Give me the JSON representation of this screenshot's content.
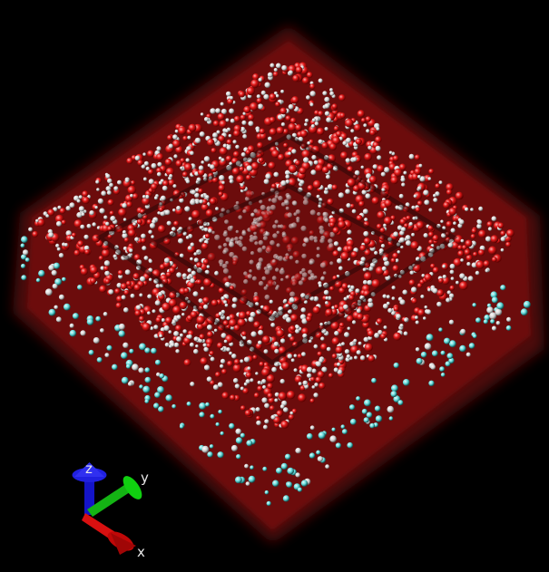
{
  "scene": {
    "background": "#000000",
    "glow_color": "#6a0d0d",
    "oxygen_color": "#e01818",
    "hydrogen_color": "#e8e8e8",
    "membrane_color": "#5fd6d6"
  },
  "axes": {
    "x_label": "x",
    "y_label": "y",
    "z_label": "z",
    "x_color": "#e01010",
    "y_color": "#10c010",
    "z_color": "#1818e0"
  }
}
